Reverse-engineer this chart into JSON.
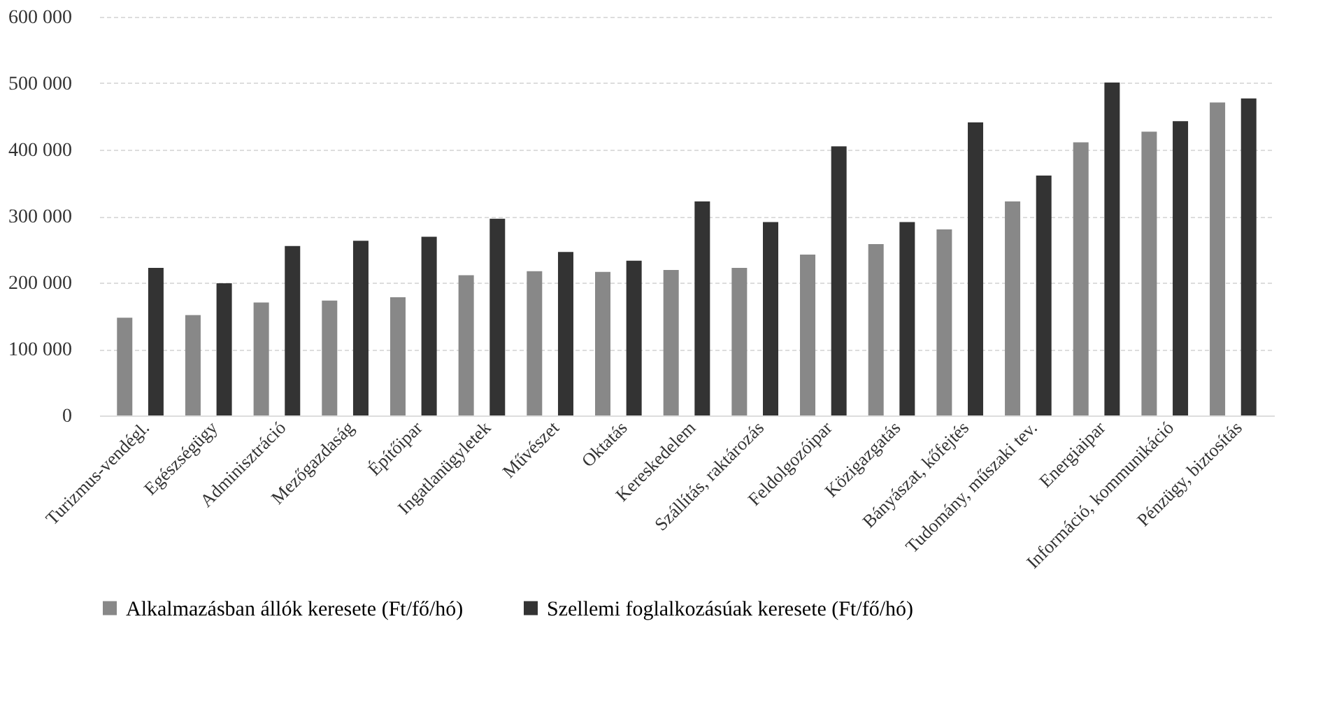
{
  "chart_data": {
    "type": "bar",
    "categories": [
      "Turizmus-vendégl.",
      "Egészségügy",
      "Adminisztráció",
      "Mezőgazdaság",
      "Építőipar",
      "Ingatlanügyletek",
      "Művészet",
      "Oktatás",
      "Kereskedelem",
      "Szállítás, raktározás",
      "Feldolgozóipar",
      "Közigazgatás",
      "Bányászat, kőfejtés",
      "Tudomány, műszaki tev.",
      "Energiaipar",
      "Információ, kommunikáció",
      "Pénzügy, biztosítás"
    ],
    "series": [
      {
        "name": "Alkalmazásban állók keresete (Ft/fő/hó)",
        "color": "#888888",
        "values": [
          147000,
          151000,
          170000,
          173000,
          178000,
          211000,
          217000,
          216000,
          219000,
          222000,
          242000,
          258000,
          280000,
          322000,
          411000,
          427000,
          471000
        ]
      },
      {
        "name": "Szellemi foglalkozásúak keresete (Ft/fő/hó)",
        "color": "#333333",
        "values": [
          222000,
          199000,
          255000,
          263000,
          269000,
          296000,
          246000,
          233000,
          322000,
          291000,
          405000,
          291000,
          441000,
          361000,
          501000,
          443000,
          477000
        ]
      }
    ],
    "ylim": [
      0,
      600000
    ],
    "yticks": [
      0,
      {
        "value": 100000,
        "label": "100 000"
      },
      {
        "value": 200000,
        "label": "200 000"
      },
      {
        "value": 300000,
        "label": "300 000"
      },
      {
        "value": 400000,
        "label": "400 000"
      },
      {
        "value": 500000,
        "label": "500 000"
      },
      {
        "value": 600000,
        "label": "600 000"
      }
    ],
    "grid": "y",
    "legend": "bottom"
  }
}
